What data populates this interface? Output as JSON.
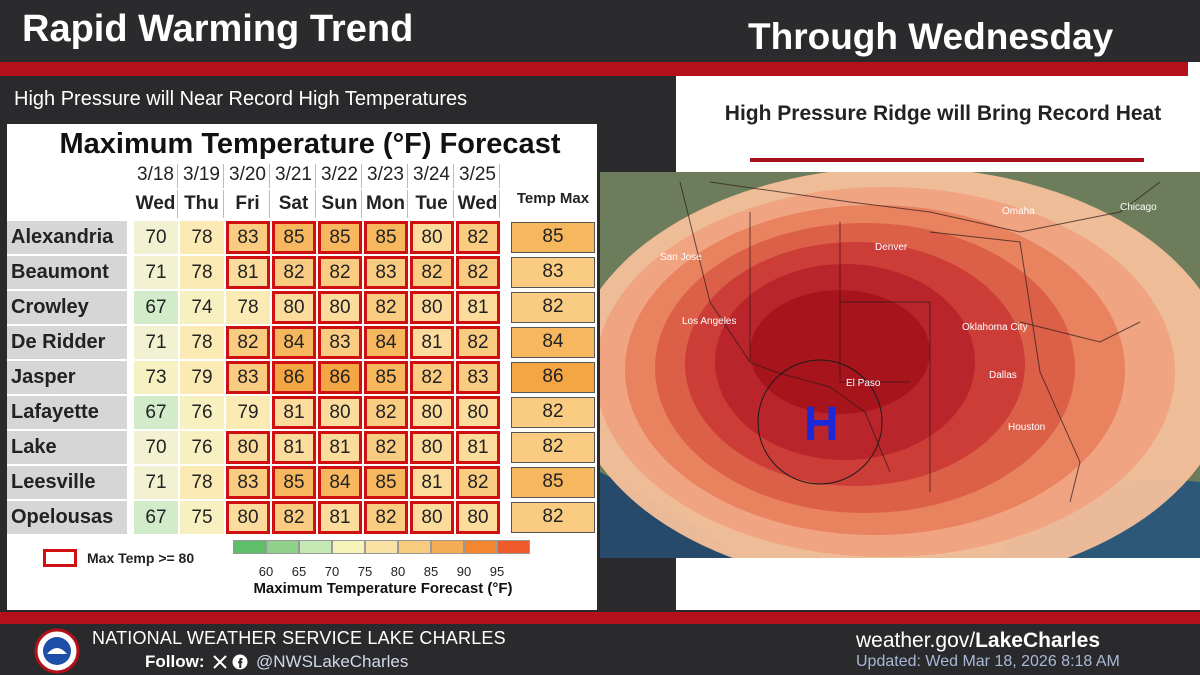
{
  "header": {
    "title": "Rapid Warming Trend",
    "right_title": "Through Wednesday",
    "subtitle": "High Pressure will Near Record High Temperatures"
  },
  "right_panel": {
    "heading": "High Pressure Ridge will Bring Record Heat",
    "map_labels": {
      "city1": "San Jose",
      "city2": "Los Angeles",
      "city3": "Denver",
      "city4": "Omaha",
      "city5": "Chicago",
      "city6": "Oklahoma City",
      "city7": "El Paso",
      "city8": "Dallas",
      "city9": "Houston",
      "high": "H"
    }
  },
  "table": {
    "title": "Maximum Temperature (°F) Forecast",
    "dates": [
      "3/18",
      "3/19",
      "3/20",
      "3/21",
      "3/22",
      "3/23",
      "3/24",
      "3/25"
    ],
    "days": [
      "Wed",
      "Thu",
      "Fri",
      "Sat",
      "Sun",
      "Mon",
      "Tue",
      "Wed"
    ],
    "max_header": "Temp Max",
    "rows": [
      {
        "city": "Alexandria",
        "values": [
          70,
          78,
          83,
          85,
          85,
          85,
          80,
          82
        ],
        "max": 85
      },
      {
        "city": "Beaumont",
        "values": [
          71,
          78,
          81,
          82,
          82,
          83,
          82,
          82
        ],
        "max": 83
      },
      {
        "city": "Crowley",
        "values": [
          67,
          74,
          78,
          80,
          80,
          82,
          80,
          81
        ],
        "max": 82
      },
      {
        "city": "De Ridder",
        "values": [
          71,
          78,
          82,
          84,
          83,
          84,
          81,
          82
        ],
        "max": 84
      },
      {
        "city": "Jasper",
        "values": [
          73,
          79,
          83,
          86,
          86,
          85,
          82,
          83
        ],
        "max": 86
      },
      {
        "city": "Lafayette",
        "values": [
          67,
          76,
          79,
          81,
          80,
          82,
          80,
          80
        ],
        "max": 82
      },
      {
        "city": "Lake Charles",
        "values": [
          70,
          76,
          80,
          81,
          81,
          82,
          80,
          81
        ],
        "max": 82
      },
      {
        "city": "Leesville",
        "values": [
          71,
          78,
          83,
          85,
          84,
          85,
          81,
          82
        ],
        "max": 85
      },
      {
        "city": "Opelousas",
        "values": [
          67,
          75,
          80,
          82,
          81,
          82,
          80,
          80
        ],
        "max": 82
      }
    ],
    "legend_label": "Max Temp >= 80",
    "scale_ticks": [
      "60",
      "65",
      "70",
      "75",
      "80",
      "85",
      "90",
      "95"
    ],
    "scale_title": "Maximum Temperature Forecast (°F)",
    "scale_colors": [
      "#5fbe6a",
      "#8fd18a",
      "#c5e8b4",
      "#f6f4b8",
      "#f9e2a4",
      "#f7cc7e",
      "#f5ad55",
      "#f4862f",
      "#ef5a2a"
    ]
  },
  "footer": {
    "office": "NATIONAL WEATHER SERVICE LAKE CHARLES",
    "follow": "Follow:",
    "handle": "@NWSLakeCharles",
    "site_prefix": "weather.gov/",
    "site_bold": "LakeCharles",
    "updated": "Updated: Wed Mar 18, 2026 8:18 AM"
  },
  "colors": {
    "accent_red": "#b3101a",
    "high_letter": "#1a2ad8",
    "ridge_core": "#a8141c",
    "ridge_outer": "#f0a482"
  }
}
